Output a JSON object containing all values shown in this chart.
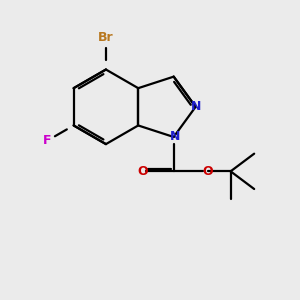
{
  "background_color": "#ebebeb",
  "bond_color": "#000000",
  "atom_colors": {
    "Br": "#b87820",
    "F": "#cc00cc",
    "N": "#2020cc",
    "O": "#cc0000",
    "C": "#000000"
  },
  "figsize": [
    3.0,
    3.0
  ],
  "dpi": 100
}
